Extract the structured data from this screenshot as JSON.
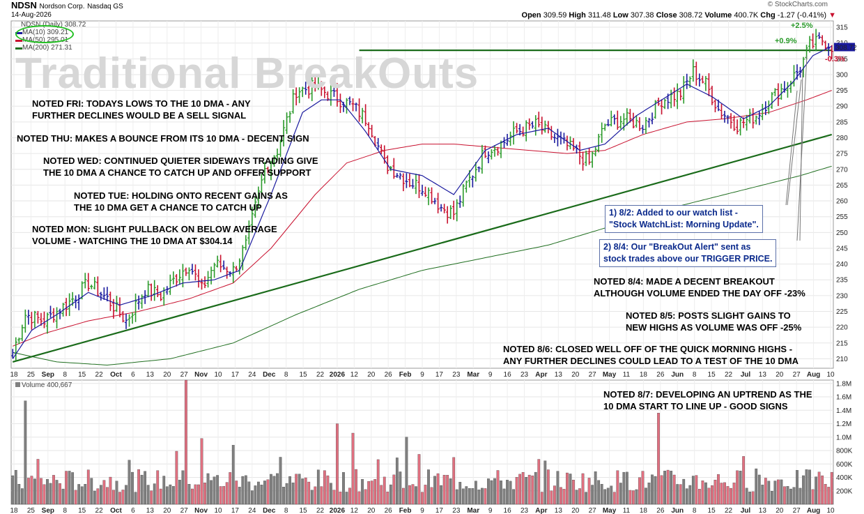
{
  "header": {
    "symbol": "NDSN",
    "company": "Nordson Corp.",
    "exchange": "Nasdaq GS",
    "date": "14-Aug-2026",
    "credit": "© StockCharts.com",
    "open_label": "Open",
    "open": "309.59",
    "high_label": "High",
    "high": "311.48",
    "low_label": "Low",
    "low": "307.38",
    "close_label": "Close",
    "close": "308.72",
    "volume_label": "Volume",
    "volume": "400.7K",
    "chg_label": "Chg",
    "chg": "-1.27 (-0.41%)"
  },
  "legend": {
    "price": "NDSN (Daily) 308.72",
    "ma10": "MA(10) 309.21",
    "ma50": "MA(50) 295.01",
    "ma200": "MA(200) 271.31",
    "volume": "Volume 400,667"
  },
  "watermark": "Traditional BreakOuts",
  "notes": [
    {
      "id": "fri",
      "text": "NOTED FRI: TODAYS LOWS TO THE 10 DMA - ANY\nFURTHER DECLINES WOULD BE A SELL SIGNAL"
    },
    {
      "id": "thu",
      "text": "NOTED THU: MAKES A BOUNCE FROM ITS 10 DMA - DECENT SIGN"
    },
    {
      "id": "wed",
      "text": "NOTED WED: CONTINUED QUIETER SIDEWAYS TRADING GIVE\nTHE 10 DMA A CHANCE TO CATCH UP AND OFFER SUPPORT"
    },
    {
      "id": "tue",
      "text": "NOTED TUE: HOLDING ONTO RECENT GAINS AS\nTHE 10 DMA GET A CHANCE TO CATCH UP"
    },
    {
      "id": "mon",
      "text": "NOTED MON: SLIGHT PULLBACK ON BELOW AVERAGE\nVOLUME - WATCHING THE 10 DMA AT $304.14"
    },
    {
      "id": "n84",
      "text": "NOTED 8/4: MADE A DECENT BREAKOUT\nALTHOUGH VOLUME ENDED THE DAY OFF -23%"
    },
    {
      "id": "n85",
      "text": "NOTED 8/5: POSTS SLIGHT GAINS TO\nNEW HIGHS AS VOLUME WAS OFF -25%"
    },
    {
      "id": "n86",
      "text": "NOTED 8/6: CLOSED WELL OFF OF THE QUICK MORNING HIGHS -\nANY FURTHER DECLINES COULD LEAD TO A TEST OF THE 10 DMA"
    },
    {
      "id": "n87",
      "text": "NOTED 8/7: DEVELOPING AN UPTREND AS THE\n10 DMA START TO LINE UP - GOOD SIGNS"
    }
  ],
  "callouts": [
    {
      "id": "c1",
      "text": "1) 8/2: Added to our watch list -\n\"Stock WatchList: Morning Update\"."
    },
    {
      "id": "c2",
      "text": "2) 8/4: Our \"BreakOut Alert\" sent as\nstock trades above our TRIGGER PRICE."
    }
  ],
  "pct_labels": {
    "up25": "+2.5%",
    "up09": "+0.9%",
    "dn03": "-0.3%"
  },
  "colors": {
    "up": "#2a9a2a",
    "down": "#c8102e",
    "neutral": "#1a1a9e",
    "ma10": "#1a1a9e",
    "ma50": "#c8102e",
    "ma200": "#1f6e1f",
    "trend": "#1a6b1a",
    "vol_up": "#808080",
    "vol_down": "#e07080"
  },
  "chart_data": {
    "type": "ohlc",
    "price_axis": {
      "min": 207,
      "max": 317,
      "ticks": [
        210,
        215,
        220,
        225,
        230,
        235,
        240,
        245,
        250,
        255,
        260,
        265,
        270,
        275,
        280,
        285,
        290,
        295,
        300,
        305,
        310,
        315
      ]
    },
    "volume_axis": {
      "min": 0,
      "max": 1850000,
      "ticks": [
        200000,
        400000,
        600000,
        800000,
        1000000,
        1200000,
        1400000,
        1600000,
        1800000
      ],
      "tick_labels": [
        "200K",
        "400K",
        "600K",
        "800K",
        "1.0M",
        "1.2M",
        "1.4M",
        "1.6M",
        "1.8M"
      ]
    },
    "x_labels": [
      "18",
      "25",
      "Sep",
      "8",
      "15",
      "22",
      "Oct",
      "6",
      "13",
      "20",
      "27",
      "Nov",
      "10",
      "17",
      "24",
      "Dec",
      "8",
      "15",
      "22",
      "2026",
      "12",
      "20",
      "26",
      "Feb",
      "9",
      "17",
      "23",
      "Mar",
      "9",
      "16",
      "23",
      "Apr",
      "13",
      "20",
      "27",
      "May",
      "11",
      "18",
      "26",
      "Jun",
      "8",
      "15",
      "22",
      "Jul",
      "13",
      "20",
      "27",
      "Aug",
      "10"
    ],
    "price_anchors": [
      [
        0,
        212
      ],
      [
        4,
        224
      ],
      [
        10,
        222
      ],
      [
        18,
        228
      ],
      [
        24,
        234
      ],
      [
        30,
        229
      ],
      [
        36,
        222
      ],
      [
        42,
        232
      ],
      [
        47,
        230
      ],
      [
        52,
        236
      ],
      [
        56,
        240
      ],
      [
        60,
        232
      ],
      [
        64,
        240
      ],
      [
        70,
        238
      ],
      [
        74,
        246
      ],
      [
        80,
        270
      ],
      [
        84,
        276
      ],
      [
        90,
        295
      ],
      [
        96,
        296
      ],
      [
        102,
        293
      ],
      [
        108,
        290
      ],
      [
        113,
        285
      ],
      [
        118,
        272
      ],
      [
        126,
        266
      ],
      [
        131,
        264
      ],
      [
        136,
        258
      ],
      [
        140,
        256
      ],
      [
        144,
        265
      ],
      [
        150,
        276
      ],
      [
        155,
        278
      ],
      [
        160,
        282
      ],
      [
        166,
        284
      ],
      [
        172,
        280
      ],
      [
        178,
        276
      ],
      [
        183,
        272
      ],
      [
        188,
        284
      ],
      [
        194,
        286
      ],
      [
        200,
        284
      ],
      [
        206,
        292
      ],
      [
        212,
        294
      ],
      [
        216,
        301
      ],
      [
        220,
        297
      ],
      [
        224,
        289
      ],
      [
        230,
        284
      ],
      [
        236,
        287
      ],
      [
        240,
        292
      ],
      [
        246,
        297
      ],
      [
        250,
        302
      ],
      [
        253,
        309
      ],
      [
        257,
        311
      ],
      [
        260,
        309
      ]
    ],
    "ma10_anchors": [
      [
        0,
        210
      ],
      [
        6,
        219
      ],
      [
        14,
        224
      ],
      [
        24,
        231
      ],
      [
        34,
        227
      ],
      [
        44,
        230
      ],
      [
        54,
        234
      ],
      [
        64,
        235
      ],
      [
        72,
        238
      ],
      [
        82,
        262
      ],
      [
        92,
        288
      ],
      [
        98,
        292
      ],
      [
        104,
        292
      ],
      [
        112,
        282
      ],
      [
        120,
        270
      ],
      [
        130,
        268
      ],
      [
        140,
        262
      ],
      [
        150,
        276
      ],
      [
        160,
        281
      ],
      [
        170,
        283
      ],
      [
        180,
        276
      ],
      [
        188,
        278
      ],
      [
        198,
        287
      ],
      [
        206,
        292
      ],
      [
        214,
        297
      ],
      [
        222,
        293
      ],
      [
        232,
        286
      ],
      [
        240,
        290
      ],
      [
        248,
        298
      ],
      [
        254,
        306
      ],
      [
        260,
        309
      ]
    ],
    "ma50_anchors": [
      [
        0,
        214
      ],
      [
        10,
        218
      ],
      [
        24,
        222
      ],
      [
        40,
        225
      ],
      [
        56,
        229
      ],
      [
        70,
        234
      ],
      [
        82,
        245
      ],
      [
        96,
        262
      ],
      [
        106,
        272
      ],
      [
        118,
        276
      ],
      [
        130,
        278
      ],
      [
        140,
        278
      ],
      [
        152,
        277
      ],
      [
        164,
        276
      ],
      [
        176,
        275
      ],
      [
        188,
        276
      ],
      [
        200,
        281
      ],
      [
        214,
        285
      ],
      [
        226,
        286
      ],
      [
        240,
        288
      ],
      [
        252,
        292
      ],
      [
        260,
        295
      ]
    ],
    "ma200_anchors": [
      [
        0,
        212
      ],
      [
        14,
        209
      ],
      [
        30,
        208
      ],
      [
        50,
        210
      ],
      [
        70,
        215
      ],
      [
        90,
        224
      ],
      [
        110,
        232
      ],
      [
        130,
        238
      ],
      [
        150,
        242
      ],
      [
        170,
        246
      ],
      [
        190,
        252
      ],
      [
        210,
        258
      ],
      [
        230,
        263
      ],
      [
        250,
        268
      ],
      [
        260,
        271
      ]
    ],
    "trendlines": [
      {
        "name": "uptrend",
        "from": [
          0,
          209
        ],
        "to": [
          260,
          281
        ]
      },
      {
        "name": "breakout-level",
        "from": [
          110,
          307.7
        ],
        "to": [
          260,
          307.7
        ]
      }
    ]
  }
}
